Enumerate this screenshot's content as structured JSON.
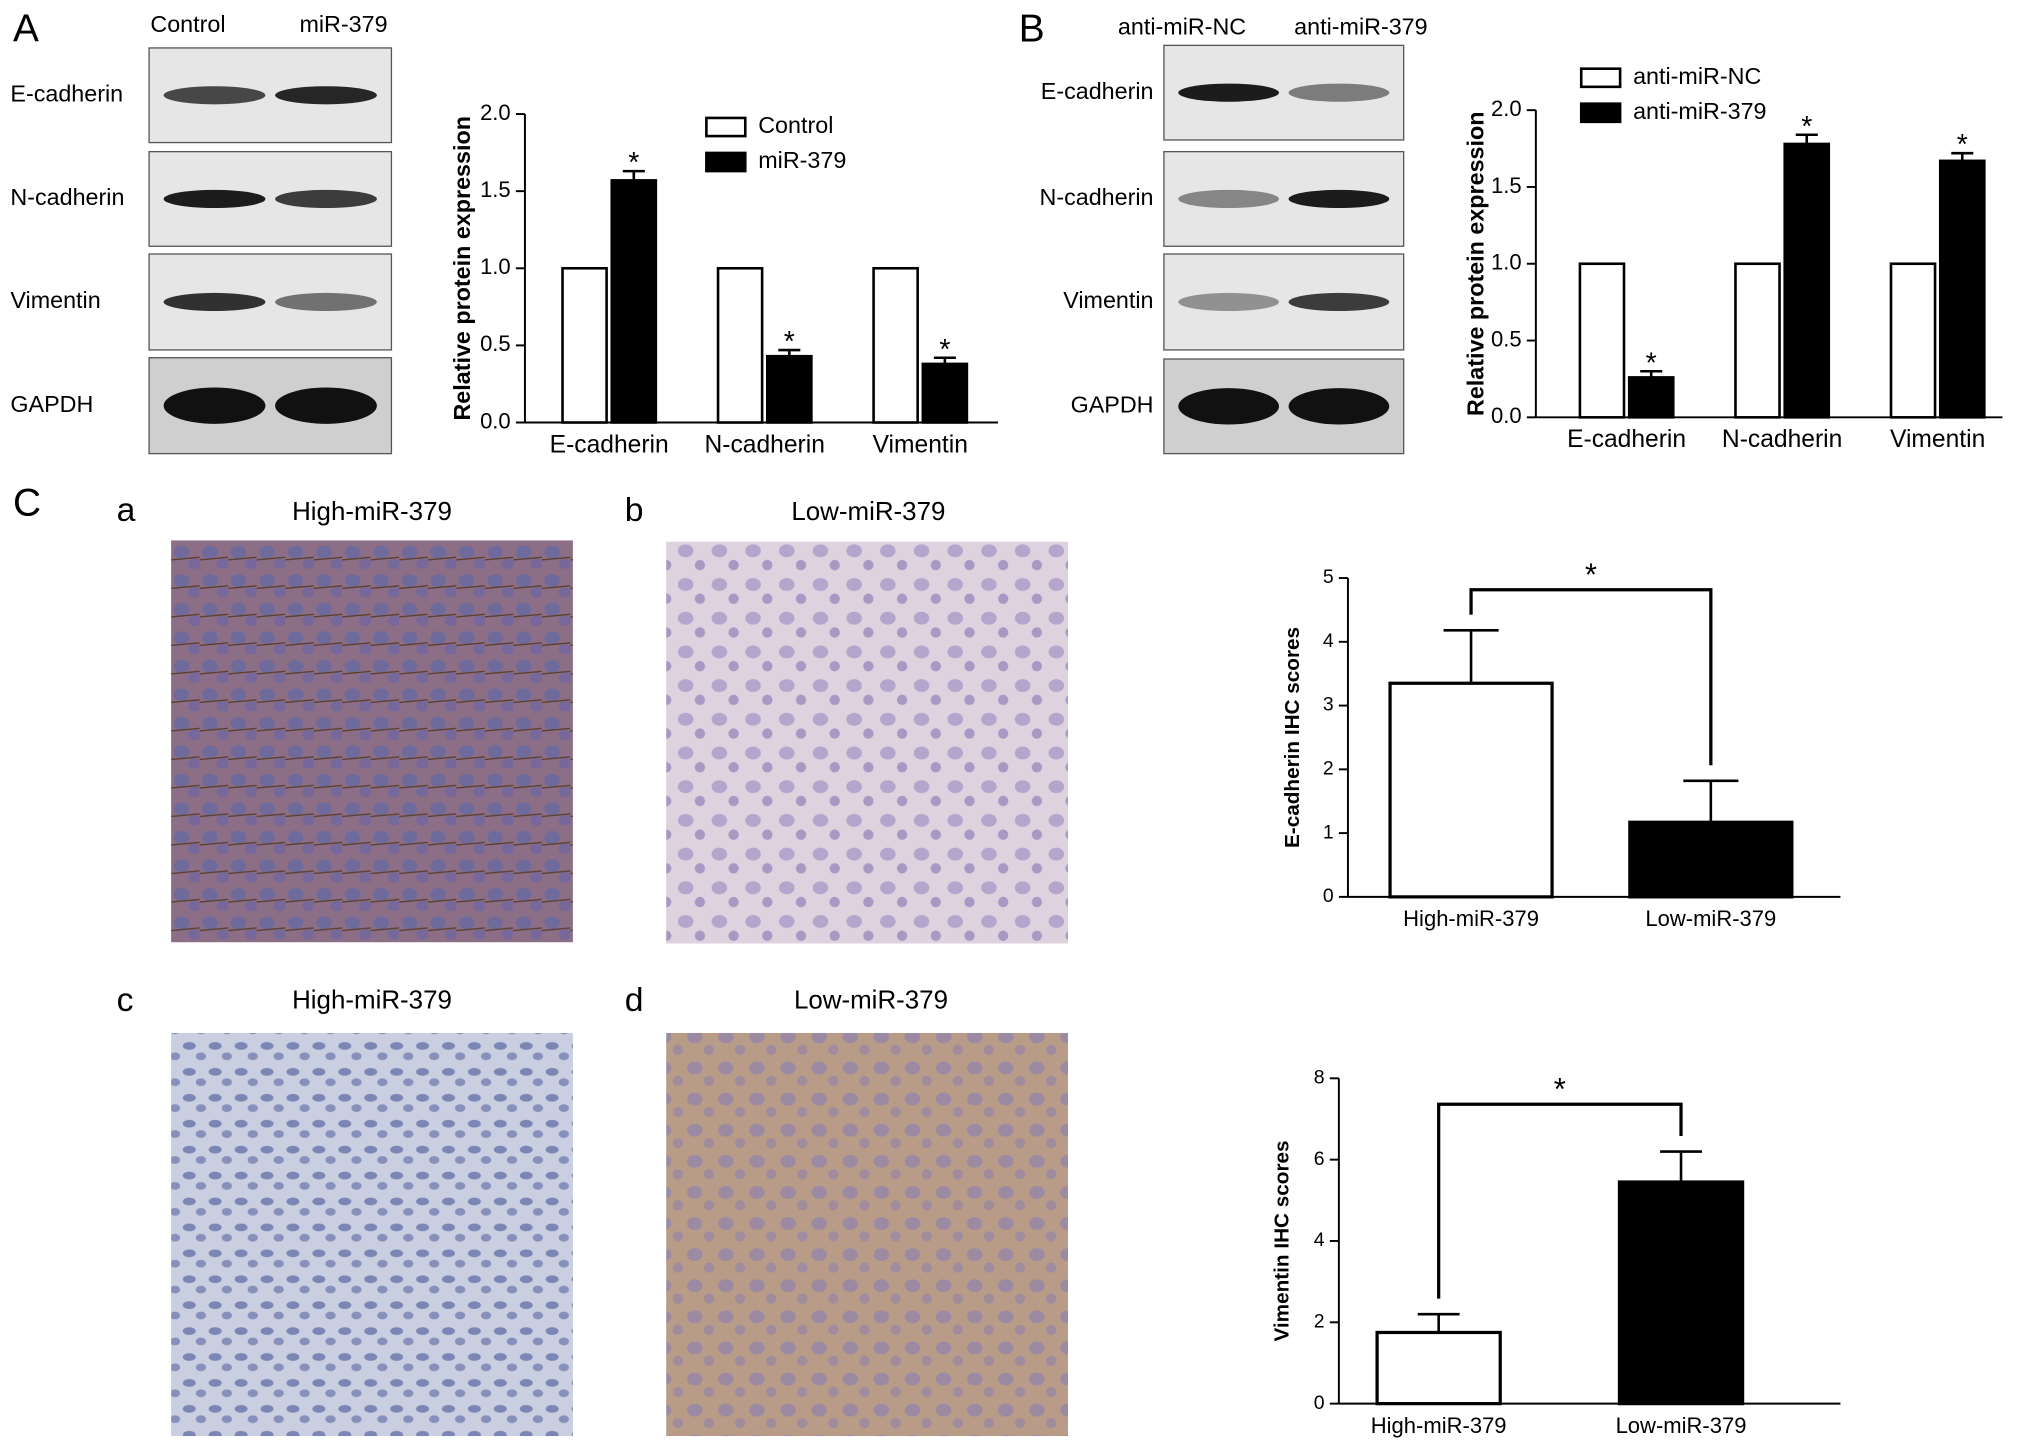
{
  "panel_labels": [
    "A",
    "B",
    "C",
    "a",
    "b",
    "c",
    "d"
  ],
  "blots": [
    {
      "columns": [
        "Control",
        "miR-379"
      ],
      "rows": [
        "E-cadherin",
        "N-cadherin",
        "Vimentin",
        "GAPDH"
      ]
    },
    {
      "columns": [
        "anti-miR-NC",
        "anti-miR-379"
      ],
      "rows": [
        "E-cadherin",
        "N-cadherin",
        "Vimentin",
        "GAPDH"
      ]
    }
  ],
  "ihc_titles": [
    "High-miR-379",
    "Low-miR-379",
    "High-miR-379",
    "Low-miR-379"
  ],
  "chart_data": [
    {
      "type": "bar",
      "ylabel": "Relative protein expression",
      "categories": [
        "E-cadherin",
        "N-cadherin",
        "Vimentin"
      ],
      "series": [
        {
          "name": "Control",
          "color": "#ffffff",
          "values": [
            1,
            1,
            1
          ]
        },
        {
          "name": "miR-379",
          "color": "#000000",
          "values": [
            1.57,
            0.43,
            0.38
          ],
          "errors": [
            0.06,
            0.04,
            0.04
          ],
          "markers": [
            "*",
            "*",
            "*"
          ]
        }
      ],
      "ylim": [
        0,
        2
      ],
      "yticks": [
        {
          "value": 0,
          "label": "0.0"
        },
        {
          "value": 0.5,
          "label": "0.5"
        },
        {
          "value": 1,
          "label": "1.0"
        },
        {
          "value": 1.5,
          "label": "1.5"
        },
        {
          "value": 2,
          "label": "2.0"
        }
      ]
    },
    {
      "type": "bar",
      "ylabel": "Relative protein expression",
      "categories": [
        "E-cadherin",
        "N-cadherin",
        "Vimentin"
      ],
      "series": [
        {
          "name": "anti-miR-NC",
          "color": "#ffffff",
          "values": [
            1,
            1,
            1
          ]
        },
        {
          "name": "anti-miR-379",
          "color": "#000000",
          "values": [
            0.26,
            1.78,
            1.67
          ],
          "errors": [
            0.04,
            0.06,
            0.05
          ],
          "markers": [
            "*",
            "*",
            "*"
          ]
        }
      ],
      "ylim": [
        0,
        2
      ],
      "yticks": [
        {
          "value": 0,
          "label": "0.0"
        },
        {
          "value": 0.5,
          "label": "0.5"
        },
        {
          "value": 1,
          "label": "1.0"
        },
        {
          "value": 1.5,
          "label": "1.5"
        },
        {
          "value": 2,
          "label": "2.0"
        }
      ]
    },
    {
      "type": "bar",
      "ylabel": "E-cadherin IHC scores",
      "categories": [
        "High-miR-379",
        "Low-miR-379"
      ],
      "values": [
        3.35,
        1.17
      ],
      "errors": [
        0.83,
        0.65
      ],
      "colors": [
        "#ffffff",
        "#000000"
      ],
      "significance": "*",
      "ylim": [
        0,
        5
      ],
      "yticks": [
        0,
        1,
        2,
        3,
        4,
        5
      ]
    },
    {
      "type": "bar",
      "ylabel": "Vimentin IHC scores",
      "categories": [
        "High-miR-379",
        "Low-miR-379"
      ],
      "values": [
        1.75,
        5.45
      ],
      "errors": [
        0.45,
        0.75
      ],
      "colors": [
        "#ffffff",
        "#000000"
      ],
      "significance": "*",
      "ylim": [
        0,
        8
      ],
      "yticks": [
        0,
        2,
        4,
        6,
        8
      ]
    }
  ]
}
